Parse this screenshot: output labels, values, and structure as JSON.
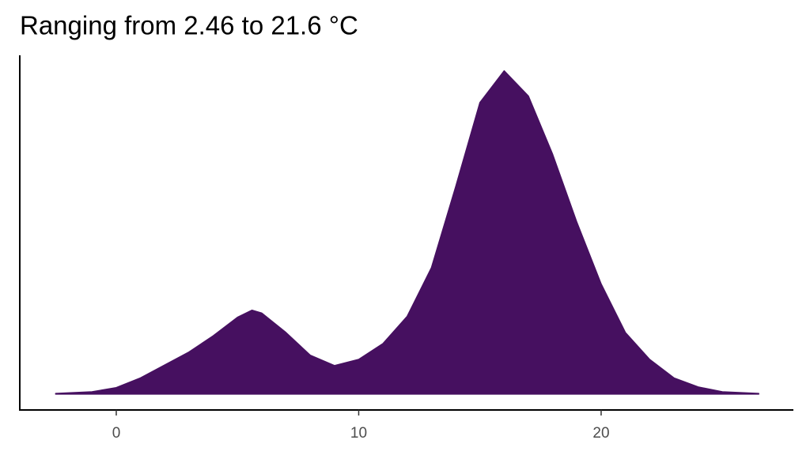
{
  "chart_data": {
    "type": "area",
    "title": "Ranging from 2.46 to 21.6 °C",
    "x": [
      -2.5,
      -1,
      0,
      1,
      2,
      3,
      4,
      5,
      5.6,
      6,
      7,
      8,
      9,
      10,
      11,
      12,
      13,
      14,
      15,
      16,
      17,
      18,
      19,
      20,
      21,
      22,
      23,
      24,
      25,
      26.5
    ],
    "values": [
      0.0002,
      0.0007,
      0.002,
      0.005,
      0.009,
      0.013,
      0.018,
      0.0237,
      0.0259,
      0.025,
      0.019,
      0.012,
      0.0088,
      0.0107,
      0.0156,
      0.024,
      0.039,
      0.064,
      0.09,
      0.0998,
      0.092,
      0.074,
      0.053,
      0.034,
      0.019,
      0.0107,
      0.005,
      0.0022,
      0.0007,
      0.0002
    ],
    "color": "#461060",
    "xlim": [
      -3.98,
      27.93
    ],
    "xticks": [
      0,
      10,
      20
    ],
    "ylim": [
      -0.0049,
      0.1046
    ]
  }
}
